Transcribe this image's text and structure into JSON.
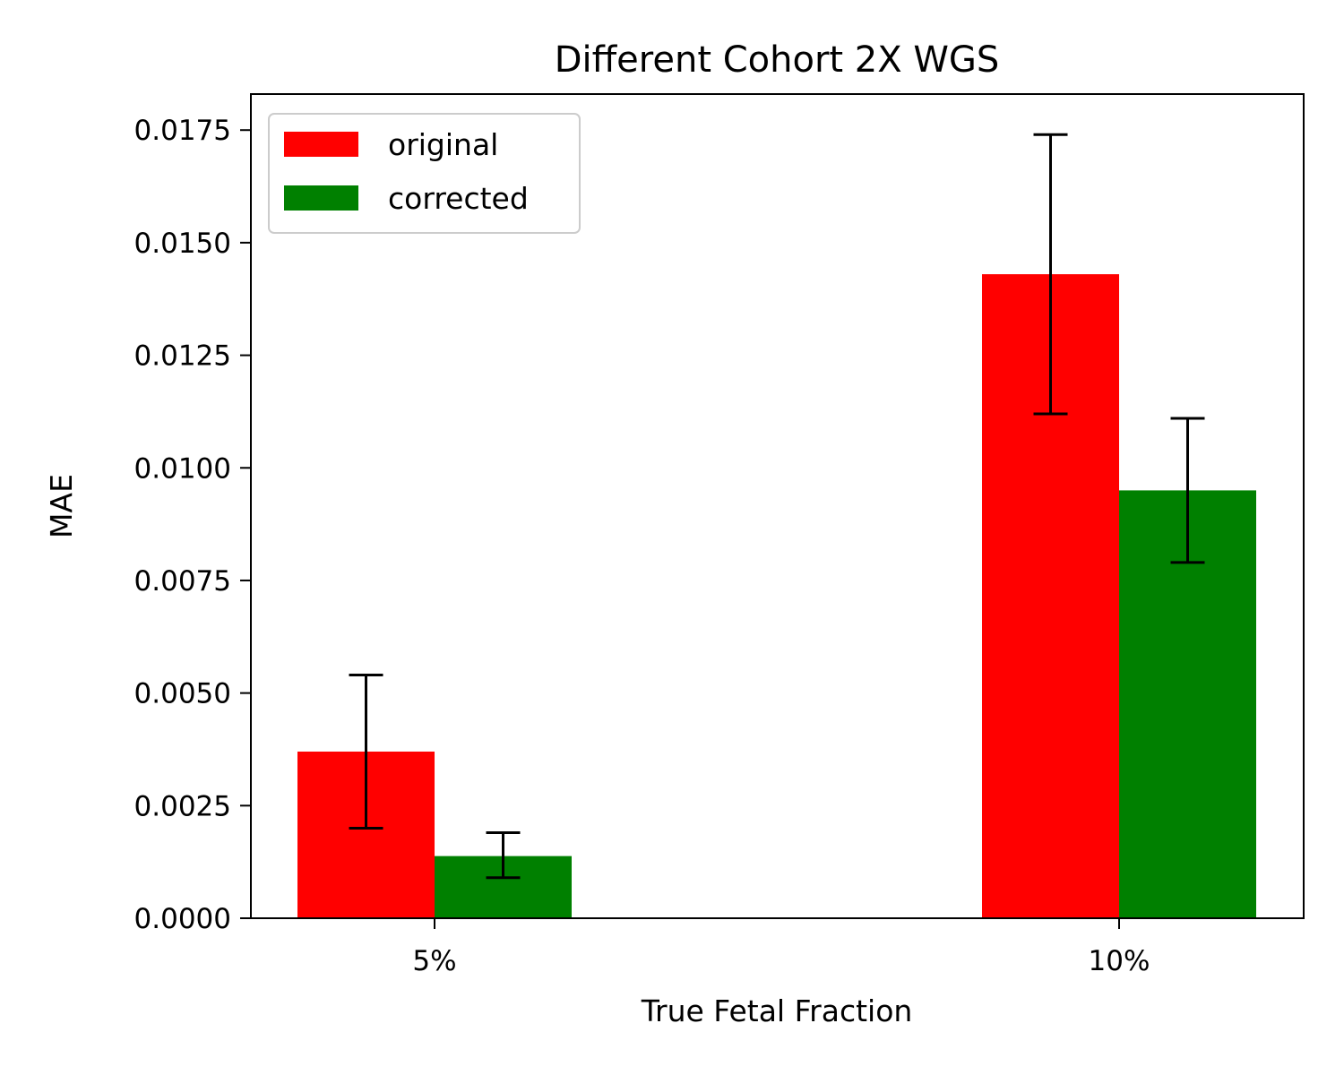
{
  "chart_data": {
    "type": "bar",
    "title": "Different Cohort 2X WGS",
    "xlabel": "True Fetal Fraction",
    "ylabel": "MAE",
    "categories": [
      "5%",
      "10%"
    ],
    "series": [
      {
        "name": "original",
        "color": "#ff0000",
        "values": [
          0.0037,
          0.0143
        ],
        "err_low": [
          0.002,
          0.0112
        ],
        "err_high": [
          0.0054,
          0.0174
        ]
      },
      {
        "name": "corrected",
        "color": "#008000",
        "values": [
          0.00138,
          0.0095
        ],
        "err_low": [
          0.0009,
          0.0079
        ],
        "err_high": [
          0.0019,
          0.0111
        ]
      }
    ],
    "ylim": [
      0,
      0.0183
    ],
    "yticks": [
      "0.0000",
      "0.0025",
      "0.0050",
      "0.0075",
      "0.0100",
      "0.0125",
      "0.0150",
      "0.0175"
    ],
    "grid": false,
    "legend_position": "top-left"
  }
}
